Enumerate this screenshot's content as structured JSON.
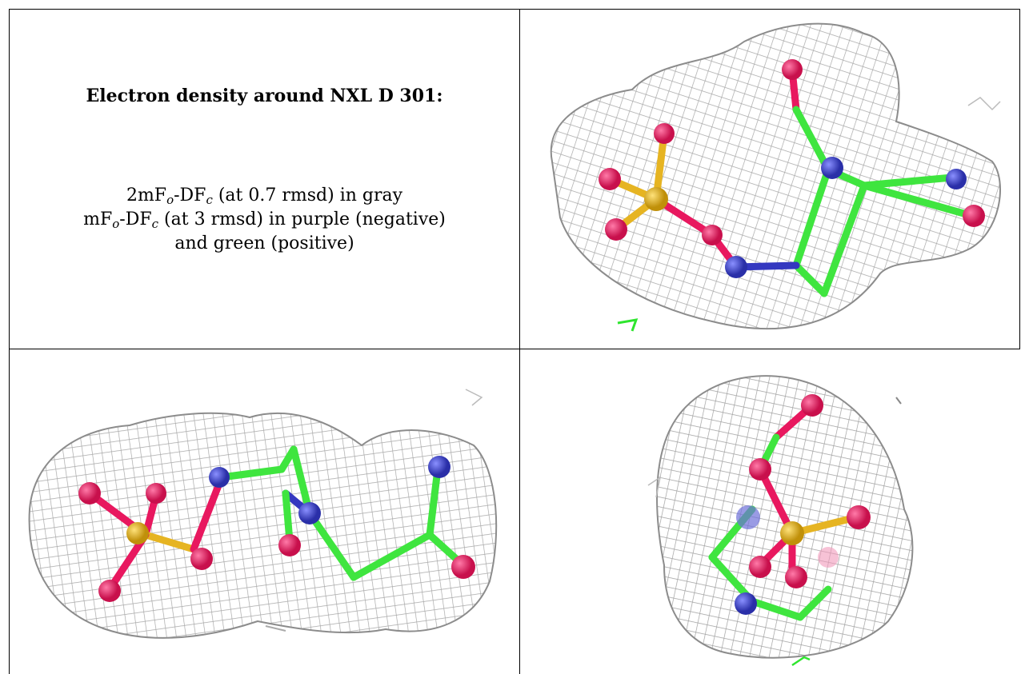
{
  "legend": {
    "title": "Electron density around NXL D 301:",
    "line1": {
      "prefix": "2mF",
      "sub1": "o",
      "mid": "-DF",
      "sub2": "c",
      "suffix": " (at 0.7 rmsd) in gray"
    },
    "line2": {
      "prefix": "mF",
      "sub1": "o",
      "mid": "-DF",
      "sub2": "c",
      "suffix": " (at 3 rmsd) in purple (negative)"
    },
    "line3": "and green (positive)"
  },
  "colors": {
    "mesh": "#9a9a9a",
    "carbon": "#3fe53f",
    "nitrogen": "#3438c0",
    "oxygen": "#e8185f",
    "sulfur": "#e6b422",
    "positive_density": "#2ee52e"
  },
  "panels": [
    {
      "name": "view-1",
      "ligand": "NXL D 301"
    },
    {
      "name": "view-2",
      "ligand": "NXL D 301"
    },
    {
      "name": "view-3",
      "ligand": "NXL D 301"
    }
  ]
}
